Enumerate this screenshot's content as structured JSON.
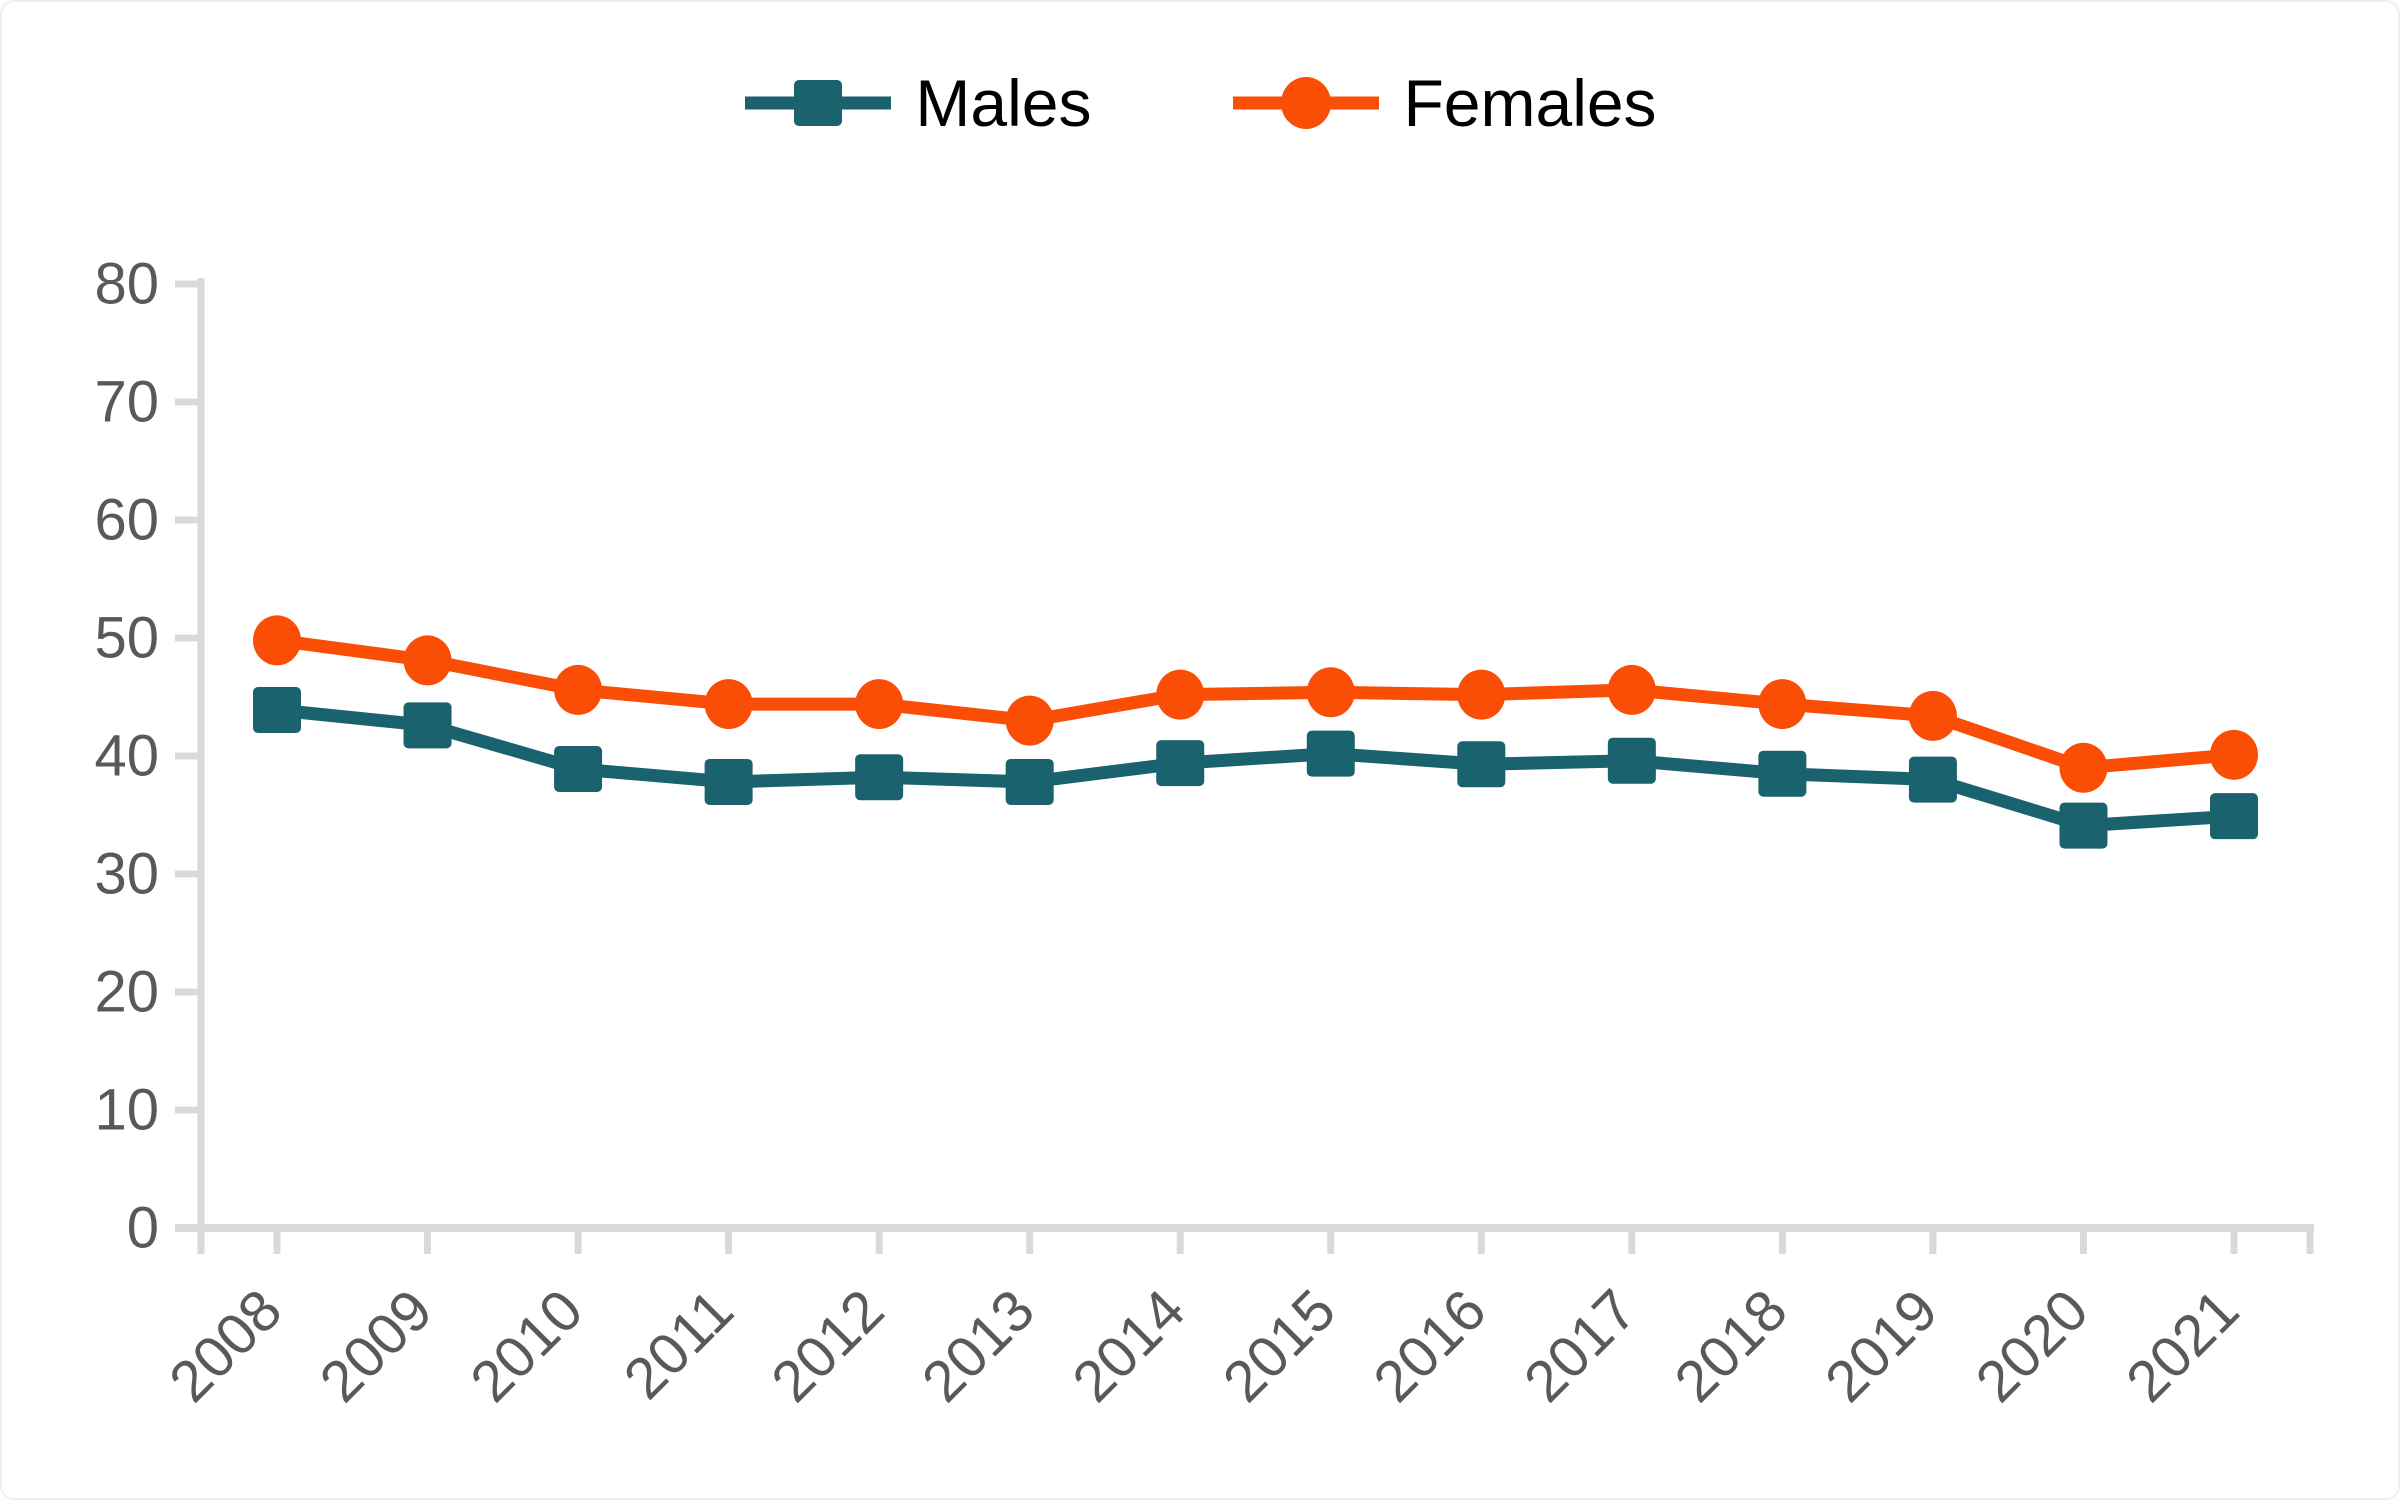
{
  "legend": {
    "items": [
      {
        "label": "Males",
        "marker": "square",
        "color": "#1A626E"
      },
      {
        "label": "Females",
        "marker": "circle",
        "color": "#FA4D05"
      }
    ],
    "position": "top-center",
    "text_color": "#000000"
  },
  "chart_data": {
    "type": "line",
    "title": "",
    "xlabel": "",
    "ylabel": "",
    "categories": [
      "2008",
      "2009",
      "2010",
      "2011",
      "2012",
      "2013",
      "2014",
      "2015",
      "2016",
      "2017",
      "2018",
      "2019",
      "2020",
      "2021"
    ],
    "series": [
      {
        "name": "Males",
        "marker": "square",
        "color": "#1A626E",
        "values": [
          43.9,
          42.6,
          38.9,
          37.8,
          38.2,
          37.8,
          39.4,
          40.2,
          39.3,
          39.6,
          38.5,
          38.0,
          34.1,
          34.9
        ]
      },
      {
        "name": "Females",
        "marker": "circle",
        "color": "#FA4D05",
        "values": [
          49.8,
          48.1,
          45.6,
          44.4,
          44.4,
          43.0,
          45.2,
          45.4,
          45.2,
          45.6,
          44.4,
          43.4,
          39.0,
          40.1
        ]
      }
    ],
    "ylim": [
      0,
      80
    ],
    "yticks": [
      0,
      10,
      20,
      30,
      40,
      50,
      60,
      70,
      80
    ],
    "ytick_labels": [
      "0",
      "10",
      "20",
      "30",
      "40",
      "50",
      "60",
      "70",
      "80"
    ],
    "grid": false,
    "legend_position": "top-center",
    "x_tick_label_rotation_deg": 45,
    "axis_color": "#D9D9D9",
    "tick_label_color": "#595959"
  }
}
